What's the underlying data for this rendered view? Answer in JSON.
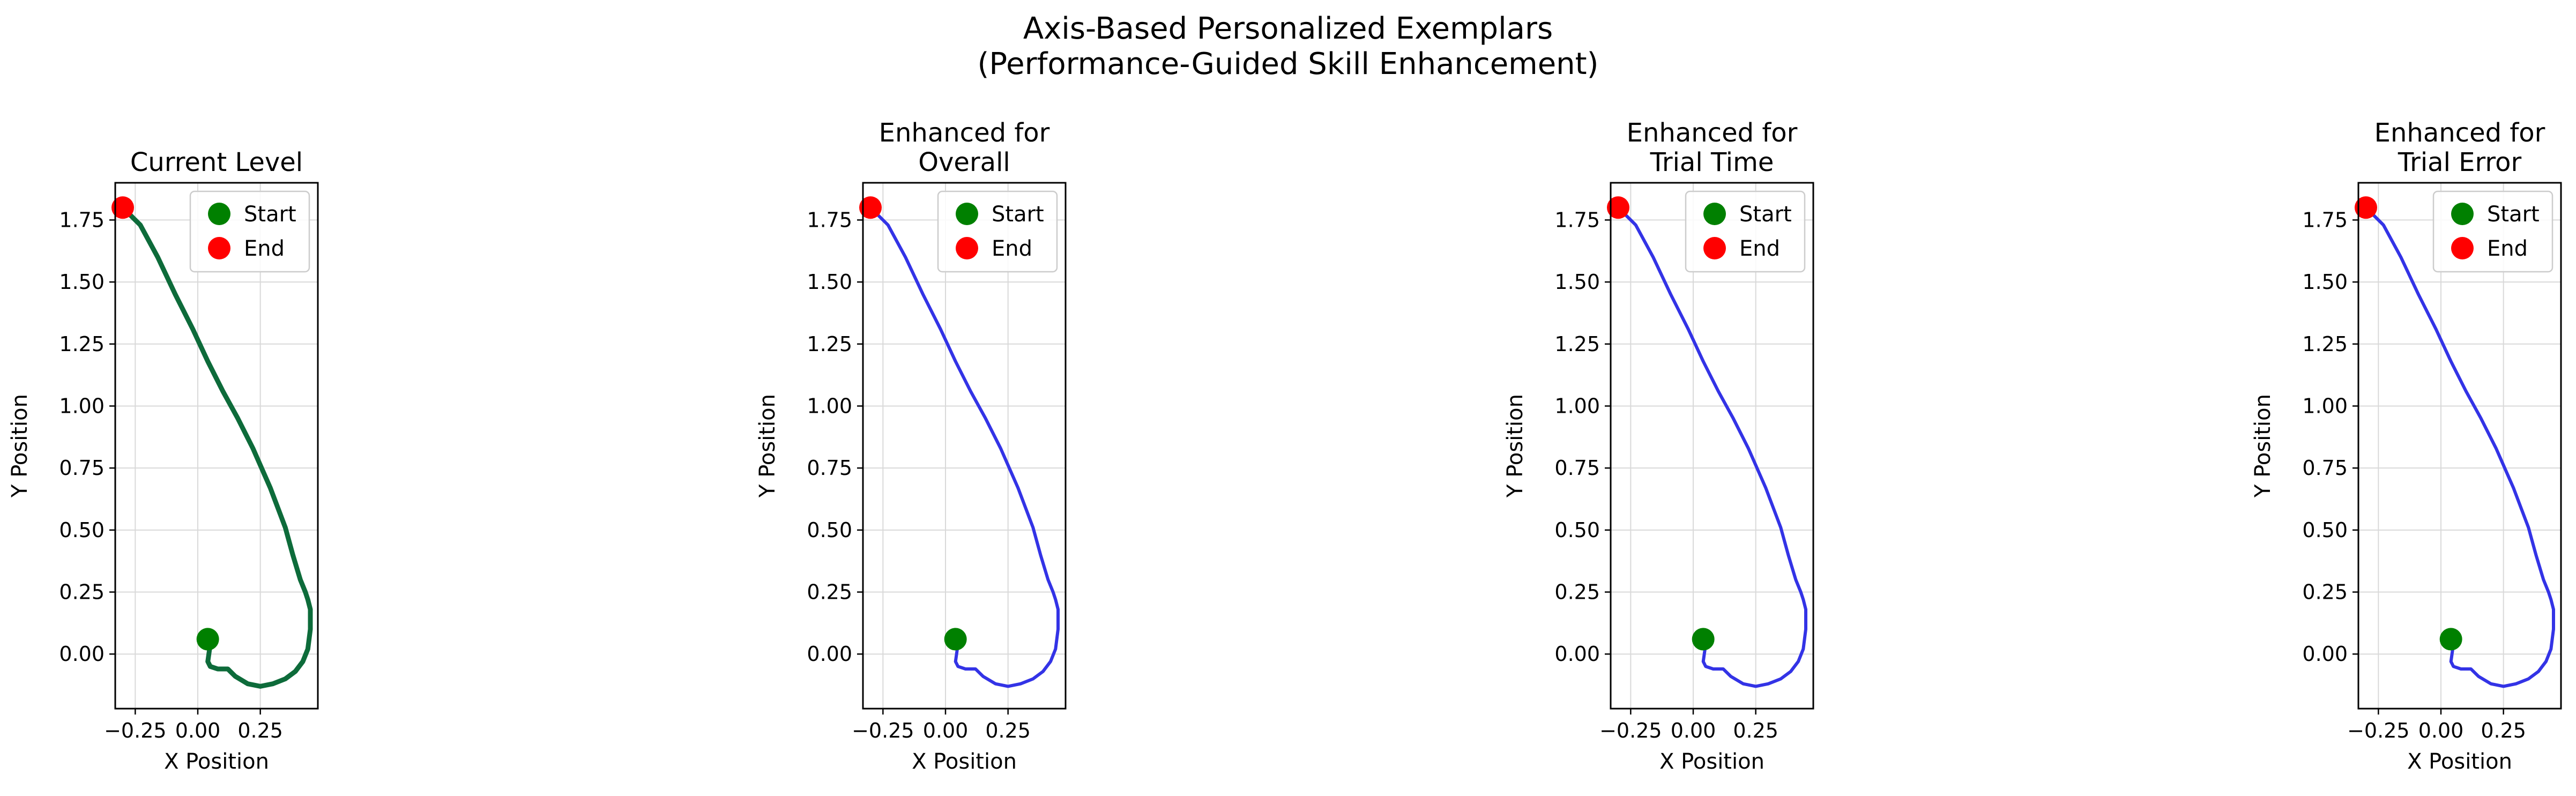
{
  "figure": {
    "title_line1": "Axis-Based Personalized Exemplars",
    "title_line2": "(Performance-Guided Skill Enhancement)"
  },
  "chart_data": [
    {
      "type": "line",
      "title": [
        "Current Level"
      ],
      "xlabel": "X Position",
      "ylabel": "Y Position",
      "xlim": [
        -0.33,
        0.48
      ],
      "ylim": [
        -0.22,
        1.9
      ],
      "xticks": [
        -0.25,
        0.0,
        0.25
      ],
      "xtick_labels": [
        "−0.25",
        "0.00",
        "0.25"
      ],
      "yticks": [
        0.0,
        0.25,
        0.5,
        0.75,
        1.0,
        1.25,
        1.5,
        1.75
      ],
      "ytick_labels": [
        "0.00",
        "0.25",
        "0.50",
        "0.75",
        "1.00",
        "1.25",
        "1.50",
        "1.75"
      ],
      "grid": true,
      "legend": {
        "location": "upper right",
        "entries": [
          "Start",
          "End"
        ]
      },
      "line_color": "#0d6b3a",
      "line_width": "thick",
      "series": [
        {
          "x": [
            0.04,
            0.05,
            0.04,
            0.05,
            0.08,
            0.12,
            0.15,
            0.2,
            0.25,
            0.3,
            0.35,
            0.39,
            0.42,
            0.44,
            0.45,
            0.45,
            0.44,
            0.43,
            0.41,
            0.38,
            0.35,
            0.29,
            0.22,
            0.16,
            0.1,
            0.04,
            -0.02,
            -0.09,
            -0.16,
            -0.23,
            -0.3
          ],
          "y": [
            0.06,
            0.04,
            -0.03,
            -0.05,
            -0.06,
            -0.06,
            -0.09,
            -0.12,
            -0.13,
            -0.12,
            -0.1,
            -0.07,
            -0.03,
            0.02,
            0.1,
            0.18,
            0.22,
            0.25,
            0.3,
            0.4,
            0.51,
            0.67,
            0.83,
            0.95,
            1.06,
            1.18,
            1.31,
            1.45,
            1.6,
            1.73,
            1.8
          ]
        }
      ],
      "start": {
        "x": 0.04,
        "y": 0.06,
        "color": "#008000"
      },
      "end": {
        "x": -0.3,
        "y": 1.8,
        "color": "#ff0000"
      }
    },
    {
      "type": "line",
      "title": [
        "Enhanced for",
        "Overall"
      ],
      "xlabel": "X Position",
      "ylabel": "Y Position",
      "xlim": [
        -0.33,
        0.48
      ],
      "ylim": [
        -0.22,
        1.9
      ],
      "xticks": [
        -0.25,
        0.0,
        0.25
      ],
      "xtick_labels": [
        "−0.25",
        "0.00",
        "0.25"
      ],
      "yticks": [
        0.0,
        0.25,
        0.5,
        0.75,
        1.0,
        1.25,
        1.5,
        1.75
      ],
      "ytick_labels": [
        "0.00",
        "0.25",
        "0.50",
        "0.75",
        "1.00",
        "1.25",
        "1.50",
        "1.75"
      ],
      "grid": true,
      "legend": {
        "location": "upper right",
        "entries": [
          "Start",
          "End"
        ]
      },
      "line_color": "#3333e6",
      "line_width": "normal",
      "series": [
        {
          "x": [
            0.04,
            0.05,
            0.04,
            0.05,
            0.08,
            0.12,
            0.15,
            0.2,
            0.25,
            0.3,
            0.35,
            0.39,
            0.42,
            0.44,
            0.45,
            0.45,
            0.44,
            0.43,
            0.41,
            0.38,
            0.35,
            0.29,
            0.22,
            0.16,
            0.1,
            0.04,
            -0.02,
            -0.09,
            -0.16,
            -0.23,
            -0.3
          ],
          "y": [
            0.06,
            0.04,
            -0.03,
            -0.05,
            -0.06,
            -0.06,
            -0.09,
            -0.12,
            -0.13,
            -0.12,
            -0.1,
            -0.07,
            -0.03,
            0.02,
            0.1,
            0.18,
            0.22,
            0.25,
            0.3,
            0.4,
            0.51,
            0.67,
            0.83,
            0.95,
            1.06,
            1.18,
            1.31,
            1.45,
            1.6,
            1.73,
            1.8
          ]
        }
      ],
      "start": {
        "x": 0.04,
        "y": 0.06,
        "color": "#008000"
      },
      "end": {
        "x": -0.3,
        "y": 1.8,
        "color": "#ff0000"
      }
    },
    {
      "type": "line",
      "title": [
        "Enhanced for",
        "Trial Time"
      ],
      "xlabel": "X Position",
      "ylabel": "Y Position",
      "xlim": [
        -0.33,
        0.48
      ],
      "ylim": [
        -0.22,
        1.9
      ],
      "xticks": [
        -0.25,
        0.0,
        0.25
      ],
      "xtick_labels": [
        "−0.25",
        "0.00",
        "0.25"
      ],
      "yticks": [
        0.0,
        0.25,
        0.5,
        0.75,
        1.0,
        1.25,
        1.5,
        1.75
      ],
      "ytick_labels": [
        "0.00",
        "0.25",
        "0.50",
        "0.75",
        "1.00",
        "1.25",
        "1.50",
        "1.75"
      ],
      "grid": true,
      "legend": {
        "location": "upper right",
        "entries": [
          "Start",
          "End"
        ]
      },
      "line_color": "#3333e6",
      "line_width": "normal",
      "series": [
        {
          "x": [
            0.04,
            0.05,
            0.04,
            0.05,
            0.08,
            0.12,
            0.15,
            0.2,
            0.25,
            0.3,
            0.35,
            0.39,
            0.42,
            0.44,
            0.45,
            0.45,
            0.44,
            0.43,
            0.41,
            0.38,
            0.35,
            0.29,
            0.22,
            0.16,
            0.1,
            0.04,
            -0.02,
            -0.09,
            -0.16,
            -0.23,
            -0.3
          ],
          "y": [
            0.06,
            0.04,
            -0.03,
            -0.05,
            -0.06,
            -0.06,
            -0.09,
            -0.12,
            -0.13,
            -0.12,
            -0.1,
            -0.07,
            -0.03,
            0.02,
            0.1,
            0.18,
            0.22,
            0.25,
            0.3,
            0.4,
            0.51,
            0.67,
            0.83,
            0.95,
            1.06,
            1.18,
            1.31,
            1.45,
            1.6,
            1.73,
            1.8
          ]
        }
      ],
      "start": {
        "x": 0.04,
        "y": 0.06,
        "color": "#008000"
      },
      "end": {
        "x": -0.3,
        "y": 1.8,
        "color": "#ff0000"
      }
    },
    {
      "type": "line",
      "title": [
        "Enhanced for",
        "Trial Error"
      ],
      "xlabel": "X Position",
      "ylabel": "Y Position",
      "xlim": [
        -0.33,
        0.48
      ],
      "ylim": [
        -0.22,
        1.9
      ],
      "xticks": [
        -0.25,
        0.0,
        0.25
      ],
      "xtick_labels": [
        "−0.25",
        "0.00",
        "0.25"
      ],
      "yticks": [
        0.0,
        0.25,
        0.5,
        0.75,
        1.0,
        1.25,
        1.5,
        1.75
      ],
      "ytick_labels": [
        "0.00",
        "0.25",
        "0.50",
        "0.75",
        "1.00",
        "1.25",
        "1.50",
        "1.75"
      ],
      "grid": true,
      "legend": {
        "location": "upper right",
        "entries": [
          "Start",
          "End"
        ]
      },
      "line_color": "#3333e6",
      "line_width": "normal",
      "series": [
        {
          "x": [
            0.04,
            0.05,
            0.04,
            0.05,
            0.08,
            0.12,
            0.15,
            0.2,
            0.25,
            0.3,
            0.35,
            0.39,
            0.42,
            0.44,
            0.45,
            0.45,
            0.44,
            0.43,
            0.41,
            0.38,
            0.35,
            0.29,
            0.22,
            0.16,
            0.1,
            0.04,
            -0.02,
            -0.09,
            -0.16,
            -0.23,
            -0.3
          ],
          "y": [
            0.06,
            0.04,
            -0.03,
            -0.05,
            -0.06,
            -0.06,
            -0.09,
            -0.12,
            -0.13,
            -0.12,
            -0.1,
            -0.07,
            -0.03,
            0.02,
            0.1,
            0.18,
            0.22,
            0.25,
            0.3,
            0.4,
            0.51,
            0.67,
            0.83,
            0.95,
            1.06,
            1.18,
            1.31,
            1.45,
            1.6,
            1.73,
            1.8
          ]
        }
      ],
      "start": {
        "x": 0.04,
        "y": 0.06,
        "color": "#008000"
      },
      "end": {
        "x": -0.3,
        "y": 1.8,
        "color": "#ff0000"
      }
    }
  ]
}
